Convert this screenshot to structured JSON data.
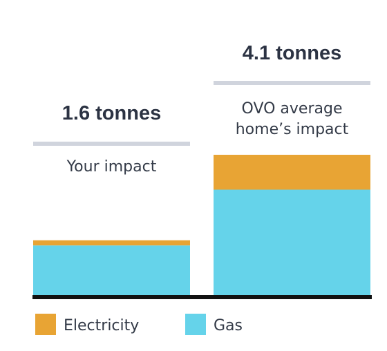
{
  "chart_data": {
    "type": "bar",
    "stacked": true,
    "categories": [
      "Your impact",
      "OVO average home’s impact"
    ],
    "category_label_lines": [
      [
        "Your impact"
      ],
      [
        "OVO average",
        "home’s impact"
      ]
    ],
    "totals": [
      "1.6 tonnes",
      "4.1 tonnes"
    ],
    "total_values": [
      1.6,
      4.1
    ],
    "series": [
      {
        "name": "Gas",
        "color": "#65d3ea",
        "values": [
          1.45,
          3.08
        ]
      },
      {
        "name": "Electricity",
        "color": "#e8a434",
        "values": [
          0.15,
          1.02
        ]
      }
    ],
    "legend": {
      "placement": "bottom-left",
      "order": [
        "Electricity",
        "Gas"
      ]
    },
    "ylim": [
      0,
      4.1
    ],
    "grid": false,
    "xlabel": "",
    "ylabel": "",
    "colors": {
      "axis": "#111111",
      "separator": "#d0d4dd",
      "text": "#333a47",
      "total_text": "#2c3343"
    }
  }
}
